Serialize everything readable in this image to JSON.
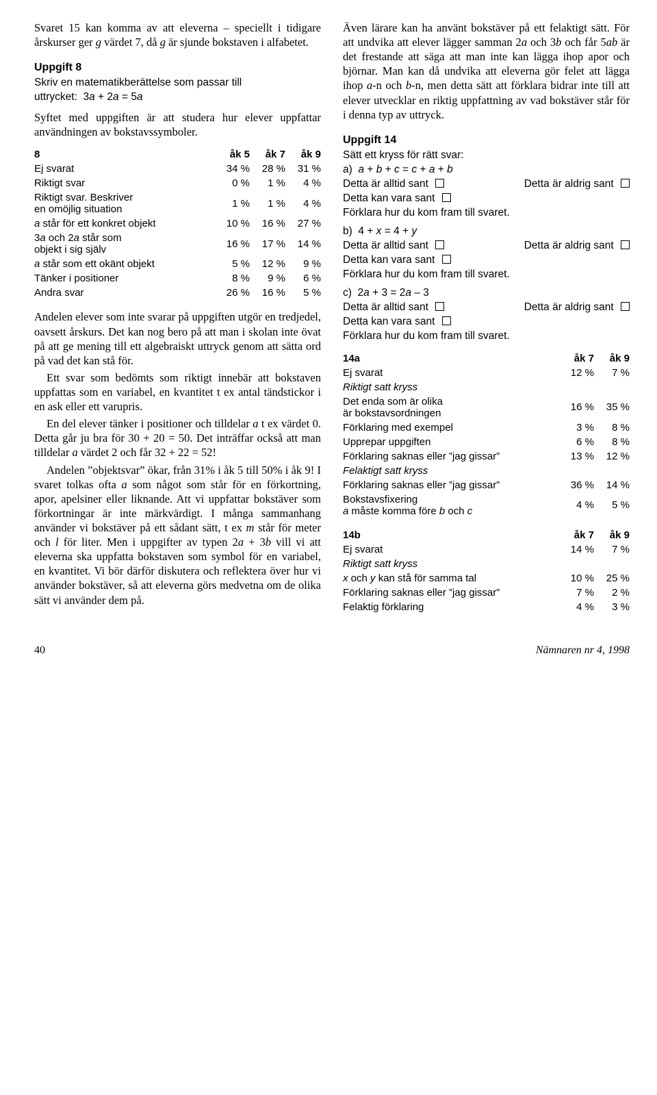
{
  "left": {
    "p1": "Svaret 15 kan komma av att eleverna – speciellt i tidigare årskurser ger g värdet 7, då g är sjunde bokstaven i alfabetet.",
    "u8": {
      "heading": "Uppgift 8",
      "sub": "Skriv en matematikberättelse som passar till",
      "expr": "uttrycket:  3a + 2a = 5a"
    },
    "p2": "Syftet med uppgiften är att studera hur elever uppfattar användningen av bokstavssymboler.",
    "table8": {
      "head": [
        "8",
        "åk 5",
        "åk 7",
        "åk 9"
      ],
      "rows": [
        {
          "label": "Ej svarat",
          "v": [
            "34 %",
            "28 %",
            "31 %"
          ]
        },
        {
          "label": "Riktigt svar",
          "v": [
            "0 %",
            "1 %",
            "4 %"
          ]
        },
        {
          "label": "Riktigt svar. Beskriver\nen omöjlig situation",
          "v": [
            "1 %",
            "1 %",
            "4 %"
          ]
        },
        {
          "label": "a står för ett konkret objekt",
          "v": [
            "10 %",
            "16 %",
            "27 %"
          ]
        },
        {
          "label": "3a och 2a står som\nobjekt i sig själv",
          "v": [
            "16 %",
            "17 %",
            "14 %"
          ]
        },
        {
          "label": "a står som ett okänt objekt",
          "v": [
            "5 %",
            "12 %",
            "9 %"
          ]
        },
        {
          "label": "Tänker i positioner",
          "v": [
            "8 %",
            "9 %",
            "6 %"
          ]
        },
        {
          "label": "Andra svar",
          "v": [
            "26 %",
            "16 %",
            "5 %"
          ]
        }
      ]
    },
    "p3": "Andelen elever som inte svarar på uppgiften utgör en tredjedel, oavsett årskurs. Det kan nog bero på att man i skolan inte övat på att ge mening till ett algebraiskt uttryck genom att sätta ord på vad det kan stå för.",
    "p4": "Ett svar som bedömts som riktigt innebär att bokstaven uppfattas som en variabel, en kvantitet t ex antal tändstickor i en ask eller ett varupris.",
    "p5": "En del elever tänker i positioner och tilldelar a t ex värdet 0. Detta går ju bra för 30 + 20 = 50. Det inträffar också att man tilldelar a värdet 2 och får 32 + 22 = 52!",
    "p6": "Andelen ”objektsvar” ökar, från 31% i åk 5 till 50% i åk 9! I svaret tolkas ofta a som något som står för en förkortning, apor, apelsiner eller liknande. Att vi uppfattar bokstäver som förkortningar är inte märkvärdigt. I många sammanhang använder vi bokstäver på ett sådant sätt, t ex m står för meter och l för liter. Men i uppgifter av typen 2a + 3b vill vi att eleverna ska uppfatta bokstaven som symbol för en variabel, en kvantitet. Vi bör därför diskutera och reflektera över hur vi använder bokstäver, så att eleverna görs medvetna om de olika sätt vi använder dem på."
  },
  "right": {
    "p1": "Även lärare kan ha använt bokstäver på ett felaktigt sätt. För att undvika att elever lägger samman 2a och 3b och får 5ab är det frestande att säga att man inte kan lägga ihop apor och björnar. Man kan då undvika att eleverna gör felet att lägga ihop a-n och b-n, men detta sätt att förklara bidrar inte till att elever utvecklar en riktig uppfattning av vad bokstäver står för i denna typ av uttryck.",
    "u14": {
      "heading": "Uppgift 14",
      "sub": "Sätt ett kryss för rätt svar:",
      "parta": "a)  a + b + c = c + a + b",
      "partb": "b)  4 + x = 4 + y",
      "partc": "c)  2a + 3 = 2a – 3",
      "alt1": "Detta är alltid sant",
      "alt2": "Detta är aldrig sant",
      "alt3": "Detta kan vara sant",
      "expl": "Förklara hur du kom fram till svaret."
    },
    "table14a": {
      "head": [
        "14a",
        "åk 7",
        "åk 9"
      ],
      "rows": [
        {
          "label": "Ej svarat",
          "v": [
            "12 %",
            "7 %"
          ]
        }
      ],
      "s1": "Riktigt satt kryss",
      "rows2": [
        {
          "label": "Det enda som är olika\när bokstavsordningen",
          "v": [
            "16 %",
            "35 %"
          ]
        },
        {
          "label": "Förklaring med exempel",
          "v": [
            "3 %",
            "8 %"
          ]
        },
        {
          "label": "Upprepar uppgiften",
          "v": [
            "6 %",
            "8 %"
          ]
        },
        {
          "label": "Förklaring saknas eller ”jag gissar”",
          "v": [
            "13 %",
            "12 %"
          ]
        }
      ],
      "s2": "Felaktigt satt kryss",
      "rows3": [
        {
          "label": "Förklaring saknas eller ”jag gissar”",
          "v": [
            "36 %",
            "14 %"
          ]
        },
        {
          "label": "Bokstavsfixering\na måste komma före b och c",
          "v": [
            "4 %",
            "5 %"
          ]
        }
      ]
    },
    "table14b": {
      "head": [
        "14b",
        "åk 7",
        "åk 9"
      ],
      "rows": [
        {
          "label": "Ej svarat",
          "v": [
            "14 %",
            "7 %"
          ]
        }
      ],
      "s1": "Riktigt satt kryss",
      "rows2": [
        {
          "label": "x och y kan stå för samma tal",
          "v": [
            "10 %",
            "25 %"
          ]
        },
        {
          "label": "Förklaring saknas eller ”jag gissar”",
          "v": [
            "7 %",
            "2 %"
          ]
        },
        {
          "label": "Felaktig förklaring",
          "v": [
            "4 %",
            "3 %"
          ]
        }
      ]
    }
  },
  "footer": {
    "page": "40",
    "issue": "Nämnaren nr 4, 1998"
  }
}
